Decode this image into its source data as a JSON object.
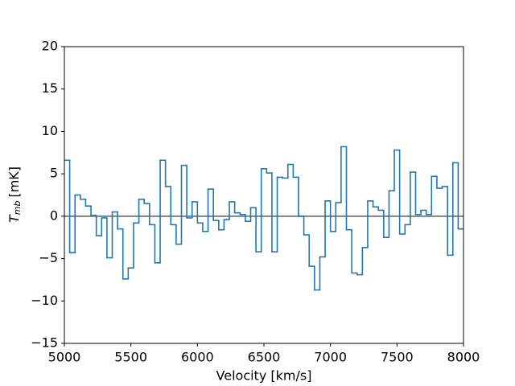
{
  "chart_data": {
    "type": "step",
    "x_label": "Velocity [km/s]",
    "y_label": {
      "symbol": "T",
      "subscript": "mb",
      "unit": "[mK]"
    },
    "x": [
      5000,
      5040,
      5080,
      5120,
      5160,
      5200,
      5240,
      5280,
      5320,
      5360,
      5400,
      5440,
      5480,
      5520,
      5560,
      5600,
      5640,
      5680,
      5720,
      5760,
      5800,
      5840,
      5880,
      5920,
      5960,
      6000,
      6040,
      6080,
      6120,
      6160,
      6200,
      6240,
      6280,
      6320,
      6360,
      6400,
      6440,
      6480,
      6520,
      6560,
      6600,
      6640,
      6680,
      6720,
      6760,
      6800,
      6840,
      6880,
      6920,
      6960,
      7000,
      7040,
      7080,
      7120,
      7160,
      7200,
      7240,
      7280,
      7320,
      7360,
      7400,
      7440,
      7480,
      7520,
      7560,
      7600,
      7640,
      7680,
      7720,
      7760,
      7800,
      7840,
      7880,
      7920,
      7960
    ],
    "series": [
      {
        "color": "#1f77b4",
        "values": [
          6.6,
          -4.3,
          2.5,
          2.0,
          1.2,
          0.1,
          -2.3,
          -0.2,
          -4.9,
          0.5,
          -1.5,
          -7.4,
          -6.1,
          -0.8,
          2.0,
          1.5,
          -1.0,
          -5.5,
          6.6,
          3.5,
          -1.0,
          -3.3,
          6.0,
          -0.2,
          1.7,
          -0.8,
          -1.8,
          3.2,
          -0.5,
          -1.6,
          -0.4,
          1.7,
          0.4,
          0.2,
          -0.6,
          1.0,
          -4.2,
          5.6,
          5.1,
          -4.2,
          4.6,
          4.5,
          6.1,
          4.6,
          0.0,
          -2.2,
          -5.9,
          -8.7,
          -4.8,
          1.8,
          -1.8,
          1.6,
          8.2,
          -1.6,
          -6.7,
          -6.9,
          -3.7,
          1.8,
          1.1,
          0.7,
          -2.5,
          3.0,
          7.8,
          -2.1,
          -1.0,
          5.2,
          0.2,
          0.7,
          0.2,
          4.7,
          3.3,
          3.5,
          -4.6,
          6.3,
          -1.5
        ]
      }
    ],
    "hline": {
      "value": 0,
      "color": "#808080"
    },
    "xlim": [
      5000,
      8000
    ],
    "xticks": [
      5000,
      5500,
      6000,
      6500,
      7000,
      7500,
      8000
    ],
    "ylim": [
      -15,
      20
    ],
    "yticks": [
      {
        "value": -15,
        "label": "−15"
      },
      {
        "value": -10,
        "label": "−10"
      },
      {
        "value": -5,
        "label": "−5"
      },
      0,
      5,
      10,
      15,
      20
    ]
  }
}
